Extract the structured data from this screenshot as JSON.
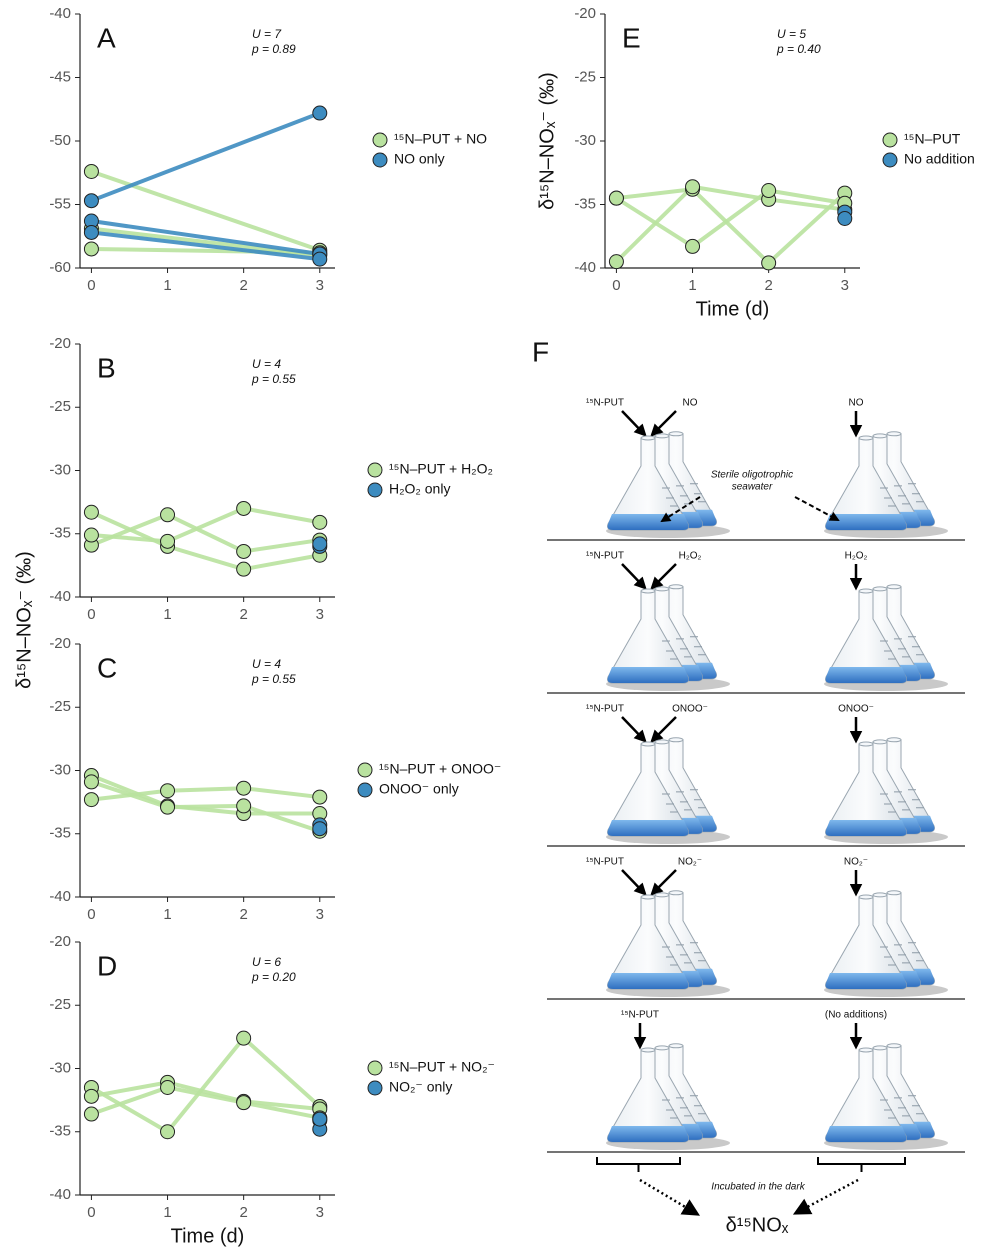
{
  "chart_data": [
    {
      "type": "line",
      "panel": "A",
      "annotations": [
        "U = 7",
        "p = 0.89"
      ],
      "x": [
        0,
        3
      ],
      "xlim": [
        -0.15,
        3.2
      ],
      "xticks": [
        0,
        1,
        2,
        3
      ],
      "ylim": [
        -60,
        -40
      ],
      "yticks": [
        -60,
        -55,
        -50,
        -45,
        -40
      ],
      "series": [
        {
          "name": "¹⁵N–PUT + NO",
          "color": "#b9e29f",
          "values": [
            [
              -52.4,
              -58.6
            ],
            [
              -56.9,
              -59.0
            ],
            [
              -58.5,
              -58.8
            ]
          ]
        },
        {
          "name": "NO only",
          "color": "#3d8cc0",
          "values": [
            [
              -54.7,
              -47.8
            ],
            [
              -56.3,
              -58.9
            ],
            [
              -57.2,
              -59.3
            ]
          ]
        }
      ]
    },
    {
      "type": "line",
      "panel": "B",
      "annotations": [
        "U = 4",
        "p = 0.55"
      ],
      "ylabel": "δ¹⁵N–NOₓ⁻ (‰)",
      "x": [
        0,
        1,
        2,
        3
      ],
      "xlim": [
        -0.15,
        3.2
      ],
      "xticks": [
        0,
        1,
        2,
        3
      ],
      "ylim": [
        -40,
        -20
      ],
      "yticks": [
        -40,
        -35,
        -30,
        -25,
        -20
      ],
      "series": [
        {
          "name": "¹⁵N–PUT + H₂O₂",
          "color": "#b9e29f",
          "values": [
            [
              -33.3,
              -36.0,
              -37.8,
              -36.7
            ],
            [
              -35.9,
              -33.5,
              -36.4,
              -35.5
            ],
            [
              -35.1,
              -35.6,
              -33.0,
              -34.1
            ]
          ]
        },
        {
          "name": "H₂O₂ only",
          "color": "#3d8cc0",
          "values": [
            [
              null,
              null,
              null,
              -36.0
            ],
            [
              null,
              null,
              null,
              -35.8
            ]
          ]
        }
      ]
    },
    {
      "type": "line",
      "panel": "C",
      "annotations": [
        "U = 4",
        "p = 0.55"
      ],
      "x": [
        0,
        1,
        2,
        3
      ],
      "xlim": [
        -0.15,
        3.2
      ],
      "xticks": [
        0,
        1,
        2,
        3
      ],
      "ylim": [
        -40,
        -20
      ],
      "yticks": [
        -40,
        -35,
        -30,
        -25,
        -20
      ],
      "series": [
        {
          "name": "¹⁵N–PUT + ONOO⁻",
          "color": "#b9e29f",
          "values": [
            [
              -30.4,
              -32.8,
              -33.4,
              -33.4
            ],
            [
              -30.9,
              -32.9,
              -32.8,
              -34.8
            ],
            [
              -32.3,
              -31.6,
              -31.4,
              -32.1
            ]
          ]
        },
        {
          "name": "ONOO⁻ only",
          "color": "#3d8cc0",
          "values": [
            [
              null,
              null,
              null,
              -34.3
            ],
            [
              null,
              null,
              null,
              -34.6
            ]
          ]
        }
      ]
    },
    {
      "type": "line",
      "panel": "D",
      "annotations": [
        "U = 6",
        "p = 0.20"
      ],
      "xlabel": "Time (d)",
      "x": [
        0,
        1,
        2,
        3
      ],
      "xlim": [
        -0.15,
        3.2
      ],
      "xticks": [
        0,
        1,
        2,
        3
      ],
      "ylim": [
        -40,
        -20
      ],
      "yticks": [
        -40,
        -35,
        -30,
        -25,
        -20
      ],
      "series": [
        {
          "name": "¹⁵N–PUT + NO₂⁻",
          "color": "#b9e29f",
          "values": [
            [
              -31.5,
              -35.0,
              -27.6,
              -33.0
            ],
            [
              -32.2,
              -31.1,
              -32.6,
              -33.2
            ],
            [
              -33.6,
              -31.5,
              -32.7,
              -33.9
            ]
          ]
        },
        {
          "name": "NO₂⁻ only",
          "color": "#3d8cc0",
          "values": [
            [
              null,
              null,
              null,
              -34.1
            ],
            [
              null,
              null,
              null,
              -34.8
            ],
            [
              null,
              null,
              null,
              -34.0
            ]
          ]
        }
      ]
    },
    {
      "type": "line",
      "panel": "E",
      "annotations": [
        "U = 5",
        "p = 0.40"
      ],
      "xlabel": "Time (d)",
      "ylabel": "δ¹⁵N–NOₓ⁻ (‰)",
      "x": [
        0,
        1,
        2,
        3
      ],
      "xlim": [
        -0.15,
        3.2
      ],
      "xticks": [
        0,
        1,
        2,
        3
      ],
      "ylim": [
        -40,
        -20
      ],
      "yticks": [
        -40,
        -35,
        -30,
        -25,
        -20
      ],
      "series": [
        {
          "name": "¹⁵N–PUT",
          "color": "#b9e29f",
          "values": [
            [
              -34.5,
              -33.8,
              -39.6,
              -34.1
            ],
            [
              -39.5,
              -33.6,
              -34.6,
              -35.4
            ],
            [
              -34.5,
              -38.3,
              -33.9,
              -34.9
            ]
          ]
        },
        {
          "name": "No addition",
          "color": "#3d8cc0",
          "values": [
            [
              null,
              null,
              null,
              -35.6
            ],
            [
              null,
              null,
              null,
              -36.1
            ]
          ]
        }
      ]
    }
  ],
  "diagram": {
    "panel": "F",
    "rows": [
      {
        "left": [
          "¹⁵N-PUT",
          "NO"
        ],
        "right": [
          "NO"
        ]
      },
      {
        "left": [
          "¹⁵N-PUT",
          "H₂O₂"
        ],
        "right": [
          "H₂O₂"
        ]
      },
      {
        "left": [
          "¹⁵N-PUT",
          "ONOO⁻"
        ],
        "right": [
          "ONOO⁻"
        ]
      },
      {
        "left": [
          "¹⁵N-PUT",
          "NO₂⁻"
        ],
        "right": [
          "NO₂⁻"
        ]
      },
      {
        "left": [
          "¹⁵N-PUT"
        ],
        "right": [
          "(No additions)"
        ]
      }
    ],
    "seawater_note": [
      "Sterile oligotrophic",
      "seawater"
    ],
    "incubation_note": "Incubated in the dark",
    "result": "δ¹⁵NOₓ"
  }
}
